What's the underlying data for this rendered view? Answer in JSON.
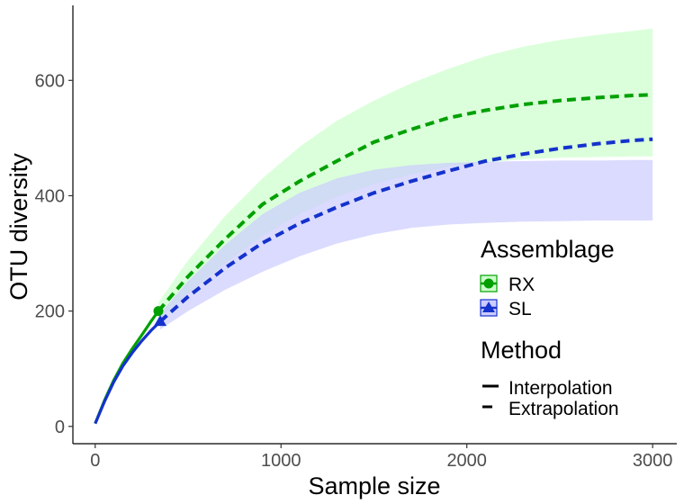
{
  "chart_data": {
    "type": "line",
    "xlabel": "Sample size",
    "ylabel": "OTU diversity",
    "xlim": [
      -120,
      3130
    ],
    "ylim": [
      -30,
      730
    ],
    "xticks": [
      0,
      1000,
      2000,
      3000
    ],
    "xtick_labels": [
      "0",
      "1000",
      "2000",
      "3000"
    ],
    "yticks": [
      0,
      200,
      400,
      600
    ],
    "ytick_labels": [
      "0",
      "200",
      "400",
      "600"
    ],
    "grid": false,
    "legend_placement": "right-middle",
    "legend": {
      "assemblage_title": "Assemblage",
      "method_title": "Method",
      "method_items": [
        "Interpolation",
        "Extrapolation"
      ]
    },
    "series": [
      {
        "name": "RX",
        "color": "#00A000",
        "band_color": "#CCFFCC",
        "marker": "circle",
        "observed": {
          "x": 340,
          "y": 200
        },
        "interpolation": {
          "x": [
            0,
            50,
            100,
            150,
            200,
            250,
            300,
            340
          ],
          "y": [
            5,
            45,
            80,
            110,
            135,
            158,
            182,
            200
          ]
        },
        "extrapolation": {
          "x": [
            340,
            500,
            700,
            900,
            1100,
            1300,
            1500,
            1700,
            1900,
            2100,
            2300,
            2500,
            2700,
            2900,
            3000
          ],
          "y": [
            200,
            260,
            325,
            385,
            425,
            460,
            493,
            515,
            535,
            548,
            558,
            565,
            570,
            574,
            575
          ]
        },
        "band": {
          "x": [
            340,
            500,
            700,
            900,
            1100,
            1300,
            1500,
            1700,
            1900,
            2100,
            2300,
            2500,
            2700,
            2900,
            3000
          ],
          "lower": [
            185,
            230,
            283,
            330,
            368,
            398,
            420,
            437,
            450,
            458,
            463,
            466,
            467,
            468,
            468
          ],
          "upper": [
            215,
            288,
            365,
            430,
            485,
            530,
            565,
            595,
            620,
            642,
            658,
            670,
            679,
            686,
            690
          ]
        }
      },
      {
        "name": "SL",
        "color": "#1432CC",
        "band_color": "#CCCCFF",
        "marker": "triangle",
        "observed": {
          "x": 350,
          "y": 182
        },
        "interpolation": {
          "x": [
            0,
            50,
            100,
            150,
            200,
            250,
            300,
            350
          ],
          "y": [
            5,
            43,
            77,
            105,
            128,
            148,
            166,
            182
          ]
        },
        "extrapolation": {
          "x": [
            350,
            500,
            700,
            900,
            1100,
            1300,
            1500,
            1700,
            1900,
            2100,
            2300,
            2500,
            2700,
            2900,
            3000
          ],
          "y": [
            182,
            225,
            275,
            318,
            352,
            380,
            405,
            425,
            443,
            460,
            472,
            482,
            490,
            496,
            498
          ]
        },
        "band": {
          "x": [
            350,
            500,
            700,
            900,
            1100,
            1300,
            1500,
            1700,
            1900,
            2100,
            2300,
            2500,
            2700,
            2900,
            3000
          ],
          "lower": [
            168,
            200,
            237,
            268,
            295,
            317,
            333,
            344,
            350,
            353,
            355,
            356,
            357,
            357,
            357
          ],
          "upper": [
            196,
            252,
            315,
            368,
            405,
            430,
            445,
            453,
            457,
            459,
            460,
            461,
            461,
            462,
            462
          ]
        }
      }
    ]
  }
}
